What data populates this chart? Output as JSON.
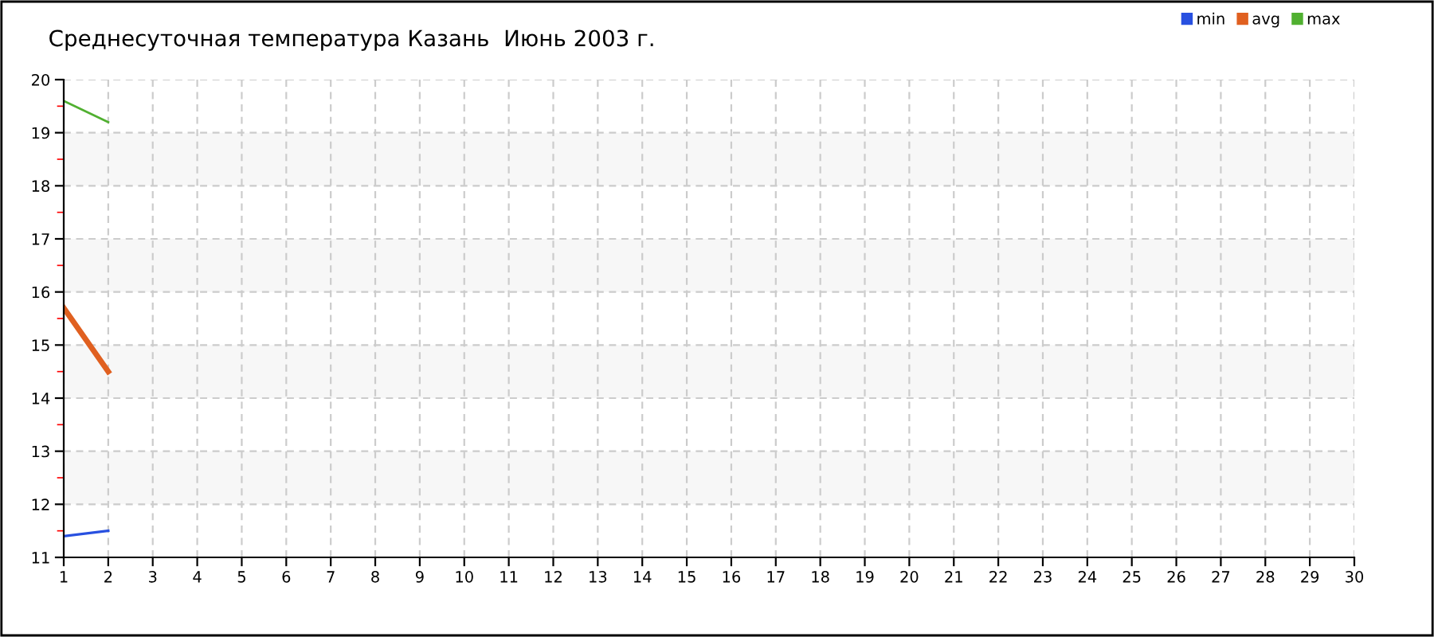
{
  "chart_data": {
    "type": "line",
    "title": "Среднесуточная температура Казань  Июнь 2003 г.",
    "x": [
      1,
      2
    ],
    "series": [
      {
        "name": "min",
        "color": "#2850e0",
        "values": [
          11.4,
          11.5
        ]
      },
      {
        "name": "avg",
        "color": "#e06020",
        "values": [
          15.7,
          14.5
        ]
      },
      {
        "name": "max",
        "color": "#50b030",
        "values": [
          19.6,
          19.2
        ]
      }
    ],
    "xlim": [
      1,
      30
    ],
    "xticks": [
      1,
      2,
      3,
      4,
      5,
      6,
      7,
      8,
      9,
      10,
      11,
      12,
      13,
      14,
      15,
      16,
      17,
      18,
      19,
      20,
      21,
      22,
      23,
      24,
      25,
      26,
      27,
      28,
      29,
      30
    ],
    "ylim": [
      11,
      20
    ],
    "yticks": [
      11,
      {
        "value": 11.5,
        "label": null
      },
      12,
      {
        "value": 12.5,
        "label": null
      },
      13,
      {
        "value": 13.5,
        "label": null
      },
      14,
      {
        "value": 14.5,
        "label": null
      },
      15,
      {
        "value": 15.5,
        "label": null
      },
      16,
      {
        "value": 16.5,
        "label": null
      },
      17,
      {
        "value": 17.5,
        "label": null
      },
      18,
      {
        "value": 18.5,
        "label": null
      },
      19,
      {
        "value": 19.5,
        "label": null
      },
      20
    ],
    "bands": [
      {
        "axis": "y",
        "from": 12,
        "to": 13,
        "color": "#f7f7f7"
      },
      {
        "axis": "y",
        "from": 14,
        "to": 15,
        "color": "#f7f7f7"
      },
      {
        "axis": "y",
        "from": 16,
        "to": 17,
        "color": "#f7f7f7"
      },
      {
        "axis": "y",
        "from": 18,
        "to": 19,
        "color": "#f7f7f7"
      }
    ],
    "grid": true,
    "line_style": "solid",
    "legend": "top right"
  }
}
